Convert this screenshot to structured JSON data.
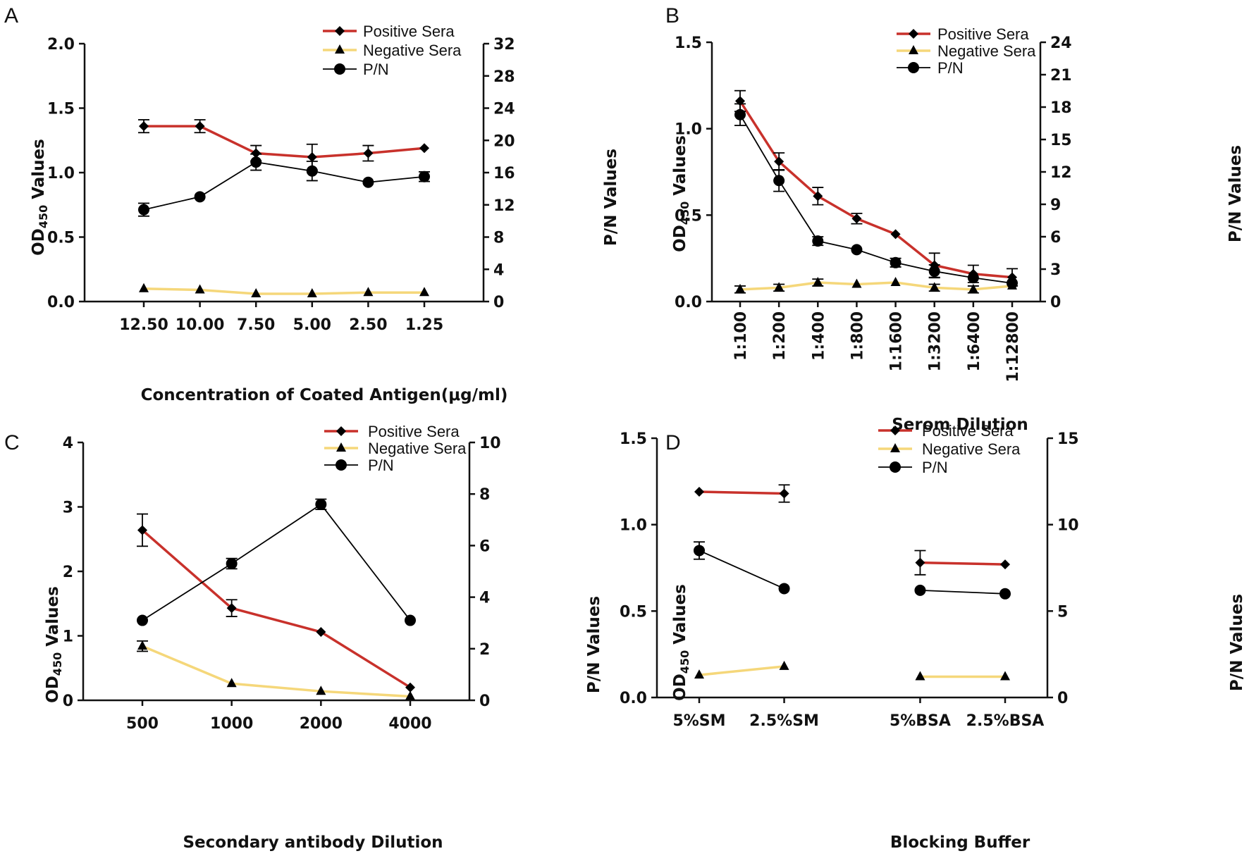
{
  "colors": {
    "positive": "#c8312b",
    "negative": "#f5d77a",
    "pn": "#000000",
    "axis": "#111111"
  },
  "chart_data": [
    {
      "panel": "A",
      "type": "line",
      "xlabel": "Concentration of Coated Antigen(μg/ml)",
      "ylabel": "OD450 Values",
      "ylabel_main": "OD",
      "ylabel_sub": "450",
      "ylabel_rest": " Values",
      "y2label": "P/N Values",
      "categories": [
        "12.50",
        "10.00",
        "7.50",
        "5.00",
        "2.50",
        "1.25"
      ],
      "ylim": [
        0,
        2.0
      ],
      "yticks": [
        0.0,
        0.5,
        1.0,
        1.5,
        2.0
      ],
      "ytick_labels": [
        "0.0",
        "0.5",
        "1.0",
        "1.5",
        "2.0"
      ],
      "y2lim": [
        0,
        32
      ],
      "y2ticks": [
        0,
        4,
        8,
        12,
        16,
        20,
        24,
        28,
        32
      ],
      "y2tick_labels": [
        "0",
        "4",
        "8",
        "12",
        "16",
        "20",
        "24",
        "28",
        "32"
      ],
      "rotate_xticks": false,
      "legend": [
        "Positive Sera",
        "Negative Sera",
        "P/N"
      ],
      "series": [
        {
          "name": "Positive Sera",
          "axis": "left",
          "values": [
            1.36,
            1.36,
            1.15,
            1.12,
            1.15,
            1.19
          ],
          "errors": [
            0.05,
            0.05,
            0.06,
            0.1,
            0.06,
            0.0
          ]
        },
        {
          "name": "Negative Sera",
          "axis": "left",
          "values": [
            0.1,
            0.09,
            0.06,
            0.06,
            0.07,
            0.07
          ],
          "errors": [
            0,
            0,
            0,
            0,
            0,
            0
          ]
        },
        {
          "name": "P/N",
          "axis": "right",
          "values": [
            11.4,
            13.0,
            17.3,
            16.2,
            14.8,
            15.5
          ],
          "errors": [
            0.8,
            0,
            1.0,
            1.2,
            0,
            0.6
          ]
        }
      ]
    },
    {
      "panel": "B",
      "type": "line",
      "xlabel": "Serom Dilution",
      "ylabel": "OD450 Values",
      "ylabel_main": "OD",
      "ylabel_sub": "450",
      "ylabel_rest": " Values",
      "y2label": "P/N Values",
      "categories": [
        "1:100",
        "1:200",
        "1:400",
        "1:800",
        "1:1600",
        "1:3200",
        "1:6400",
        "1:12800"
      ],
      "ylim": [
        0,
        1.5
      ],
      "yticks": [
        0.0,
        0.5,
        1.0,
        1.5
      ],
      "ytick_labels": [
        "0.0",
        "0.5",
        "1.0",
        "1.5"
      ],
      "y2lim": [
        0,
        24
      ],
      "y2ticks": [
        0,
        3,
        6,
        9,
        12,
        15,
        18,
        21,
        24
      ],
      "y2tick_labels": [
        "0",
        "3",
        "6",
        "9",
        "12",
        "15",
        "18",
        "21",
        "24"
      ],
      "rotate_xticks": true,
      "legend": [
        "Positive Sera",
        "Negative Sera",
        "P/N"
      ],
      "series": [
        {
          "name": "Positive Sera",
          "axis": "left",
          "values": [
            1.16,
            0.81,
            0.61,
            0.48,
            0.39,
            0.21,
            0.16,
            0.14
          ],
          "errors": [
            0.06,
            0.05,
            0.05,
            0.03,
            0,
            0.07,
            0.05,
            0.05
          ]
        },
        {
          "name": "Negative Sera",
          "axis": "left",
          "values": [
            0.07,
            0.08,
            0.11,
            0.1,
            0.11,
            0.08,
            0.07,
            0.09
          ],
          "errors": [
            0.02,
            0.02,
            0.02,
            0,
            0,
            0.02,
            0.02,
            0
          ]
        },
        {
          "name": "P/N",
          "axis": "right",
          "values": [
            17.3,
            11.2,
            5.6,
            4.8,
            3.6,
            2.8,
            2.2,
            1.7
          ],
          "errors": [
            1.0,
            1.0,
            0.4,
            0,
            0.4,
            0.6,
            0,
            0
          ]
        }
      ]
    },
    {
      "panel": "C",
      "type": "line",
      "xlabel": "Secondary antibody Dilution",
      "ylabel": "OD450 Values",
      "ylabel_main": "OD",
      "ylabel_sub": "450",
      "ylabel_rest": " Values",
      "y2label": "P/N Values",
      "categories": [
        "500",
        "1000",
        "2000",
        "4000"
      ],
      "ylim": [
        0,
        4
      ],
      "yticks": [
        0,
        1,
        2,
        3,
        4
      ],
      "ytick_labels": [
        "0",
        "1",
        "2",
        "3",
        "4"
      ],
      "y2lim": [
        0,
        10
      ],
      "y2ticks": [
        0,
        2,
        4,
        6,
        8,
        10
      ],
      "y2tick_labels": [
        "0",
        "2",
        "4",
        "6",
        "8",
        "10"
      ],
      "rotate_xticks": false,
      "legend": [
        "Positive Sera",
        "Negative Sera",
        "P/N"
      ],
      "series": [
        {
          "name": "Positive Sera",
          "axis": "left",
          "values": [
            2.64,
            1.43,
            1.06,
            0.2
          ],
          "errors": [
            0.25,
            0.13,
            0,
            0
          ]
        },
        {
          "name": "Negative Sera",
          "axis": "left",
          "values": [
            0.84,
            0.26,
            0.14,
            0.06
          ],
          "errors": [
            0.08,
            0,
            0,
            0
          ]
        },
        {
          "name": "P/N",
          "axis": "right",
          "values": [
            3.1,
            5.3,
            7.6,
            3.1
          ],
          "errors": [
            0,
            0.2,
            0.2,
            0
          ]
        }
      ]
    },
    {
      "panel": "D",
      "type": "line",
      "xlabel": "Blocking Buffer",
      "ylabel": "OD450 Values",
      "ylabel_main": "OD",
      "ylabel_sub": "450",
      "ylabel_rest": " Values",
      "y2label": "P/N Values",
      "categories": [
        "5%SM",
        "2.5%SM",
        "5%BSA",
        "2.5%BSA"
      ],
      "category_positions": [
        0,
        1,
        2.6,
        3.6
      ],
      "segments": [
        [
          0,
          1
        ],
        [
          2,
          3
        ]
      ],
      "ylim": [
        0,
        1.5
      ],
      "yticks": [
        0.0,
        0.5,
        1.0,
        1.5
      ],
      "ytick_labels": [
        "0.0",
        "0.5",
        "1.0",
        "1.5"
      ],
      "y2lim": [
        0,
        15
      ],
      "y2ticks": [
        0,
        5,
        10,
        15
      ],
      "y2tick_labels": [
        "0",
        "5",
        "10",
        "15"
      ],
      "rotate_xticks": false,
      "legend": [
        "Positive Sera",
        "Negative Sera",
        "P/N"
      ],
      "series": [
        {
          "name": "Positive Sera",
          "axis": "left",
          "values": [
            1.19,
            1.18,
            0.78,
            0.77
          ],
          "errors": [
            0,
            0.05,
            0.07,
            0
          ]
        },
        {
          "name": "Negative Sera",
          "axis": "left",
          "values": [
            0.13,
            0.18,
            0.12,
            0.12
          ],
          "errors": [
            0,
            0,
            0,
            0
          ]
        },
        {
          "name": "P/N",
          "axis": "right",
          "values": [
            8.5,
            6.3,
            6.2,
            6.0
          ],
          "errors": [
            0.5,
            0,
            0,
            0
          ]
        }
      ]
    }
  ]
}
